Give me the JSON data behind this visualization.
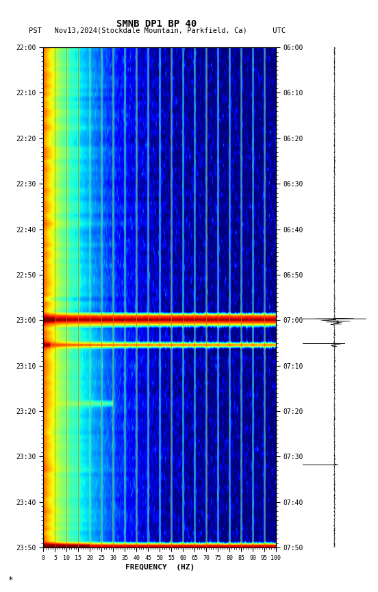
{
  "title": "SMNB DP1 BP 40",
  "subtitle_left": "PST   Nov13,2024(Stockdale Mountain, Parkfield, Ca)      UTC",
  "xlabel": "FREQUENCY  (HZ)",
  "freq_min": 0,
  "freq_max": 100,
  "freq_ticks": [
    0,
    5,
    10,
    15,
    20,
    25,
    30,
    35,
    40,
    45,
    50,
    55,
    60,
    65,
    70,
    75,
    80,
    85,
    90,
    95,
    100
  ],
  "pst_ticks": [
    "22:00",
    "22:10",
    "22:20",
    "22:30",
    "22:40",
    "22:50",
    "23:00",
    "23:10",
    "23:20",
    "23:30",
    "23:40",
    "23:50"
  ],
  "utc_ticks": [
    "06:00",
    "06:10",
    "06:20",
    "06:30",
    "06:40",
    "06:50",
    "07:00",
    "07:10",
    "07:20",
    "07:30",
    "07:40",
    "07:50"
  ],
  "vertical_lines_freq": [
    5,
    10,
    15,
    20,
    25,
    30,
    35,
    40,
    45,
    50,
    55,
    60,
    65,
    70,
    75,
    80,
    85,
    90,
    95,
    100
  ],
  "fig_width": 5.52,
  "fig_height": 8.64,
  "bg_color": "#ffffff",
  "n_time": 120,
  "n_freq": 300,
  "event1_minute": 65,
  "event2_minute": 71
}
